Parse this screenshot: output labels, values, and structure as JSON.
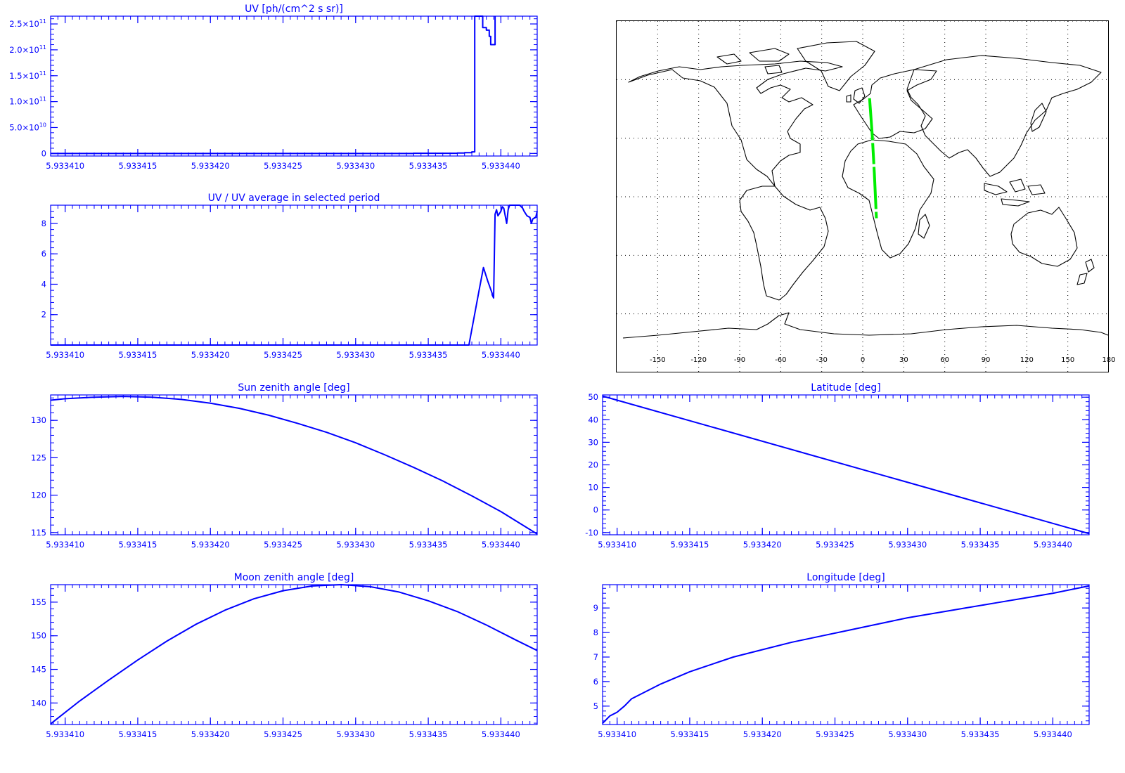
{
  "colors": {
    "axis": "#0000ff",
    "line": "#0000ff",
    "track": "#00ee00",
    "map": "#000000"
  },
  "chart_data": [
    {
      "id": "uv",
      "type": "line",
      "title": "UV [ph/(cm^2 s sr)]",
      "xlim": [
        5.933409,
        5.9334425
      ],
      "ylim": [
        -5000000000,
        265000000000
      ],
      "xticks": [
        5.93341,
        5.933415,
        5.93342,
        5.933425,
        5.93343,
        5.933435,
        5.93344
      ],
      "xtick_labels": [
        "5.933410",
        "5.933415",
        "5.933420",
        "5.933425",
        "5.933430",
        "5.933435",
        "5.933440"
      ],
      "yticks": [
        0,
        50000000000,
        100000000000,
        150000000000,
        200000000000,
        250000000000
      ],
      "ytick_labels": [
        {
          "mant": "0",
          "exp": ""
        },
        {
          "mant": "5.0×10",
          "exp": "10"
        },
        {
          "mant": "1.0×10",
          "exp": "11"
        },
        {
          "mant": "1.5×10",
          "exp": "11"
        },
        {
          "mant": "2.0×10",
          "exp": "11"
        },
        {
          "mant": "2.5×10",
          "exp": "11"
        }
      ],
      "series": [
        {
          "step": true,
          "x": [
            5.933409,
            5.933434,
            5.933437,
            5.9334375,
            5.933438,
            5.9334382,
            5.93343875,
            5.933439,
            5.9334392,
            5.9334393,
            5.9334396,
            5.9334396
          ],
          "y": [
            0,
            200000000,
            800000000,
            1500000000,
            3000000000,
            265000000000,
            243000000000,
            238000000000,
            226000000000,
            210000000000,
            210000000000,
            265000000000
          ]
        }
      ]
    },
    {
      "id": "ratio",
      "type": "line",
      "title": "UV / UV average in selected period",
      "xlim": [
        5.933409,
        5.9334425
      ],
      "ylim": [
        0,
        9.2
      ],
      "xticks": [
        5.93341,
        5.933415,
        5.93342,
        5.933425,
        5.93343,
        5.933435,
        5.93344
      ],
      "xtick_labels": [
        "5.933410",
        "5.933415",
        "5.933420",
        "5.933425",
        "5.933430",
        "5.933435",
        "5.933440"
      ],
      "yticks": [
        2,
        4,
        6,
        8
      ],
      "ytick_labels": [
        "2",
        "4",
        "6",
        "8"
      ],
      "series": [
        {
          "x": [
            5.933409,
            5.9334378,
            5.9334385,
            5.9334388,
            5.9334391,
            5.9334394,
            5.9334394,
            5.9334395,
            5.9334396,
            5.9334397,
            5.9334398,
            5.93344,
            5.9334401,
            5.9334402,
            5.9334404,
            5.9334405,
            5.9334406,
            5.9334407,
            5.9334409,
            5.9334411,
            5.9334413,
            5.9334415,
            5.9334416,
            5.9334418,
            5.933442,
            5.9334421,
            5.9334422,
            5.9334424,
            5.9334425
          ],
          "y": [
            0,
            0,
            3.6,
            5.1,
            4.2,
            3.4,
            3.3,
            3.1,
            8.6,
            8.9,
            8.5,
            8.8,
            9.1,
            9.0,
            8.0,
            8.9,
            9.2,
            9.3,
            9.4,
            9.3,
            9.2,
            9.0,
            8.8,
            8.5,
            8.4,
            8.0,
            8.3,
            8.4,
            8.8
          ]
        }
      ]
    },
    {
      "id": "sza",
      "type": "line",
      "title": "Sun zenith angle [deg]",
      "xlim": [
        5.933409,
        5.9334425
      ],
      "ylim": [
        114.7,
        133.4
      ],
      "xticks": [
        5.93341,
        5.933415,
        5.93342,
        5.933425,
        5.93343,
        5.933435,
        5.93344
      ],
      "xtick_labels": [
        "5.933410",
        "5.933415",
        "5.933420",
        "5.933425",
        "5.933430",
        "5.933435",
        "5.933440"
      ],
      "yticks": [
        115,
        120,
        125,
        130
      ],
      "ytick_labels": [
        "115",
        "120",
        "125",
        "130"
      ],
      "series": [
        {
          "x": [
            5.933409,
            5.93341,
            5.933412,
            5.933414,
            5.933416,
            5.933418,
            5.93342,
            5.933422,
            5.933424,
            5.933426,
            5.933428,
            5.93343,
            5.933432,
            5.933434,
            5.933436,
            5.933438,
            5.93344,
            5.9334425
          ],
          "y": [
            132.7,
            132.9,
            133.1,
            133.2,
            133.1,
            132.8,
            132.3,
            131.6,
            130.7,
            129.6,
            128.4,
            127.0,
            125.4,
            123.7,
            121.9,
            119.9,
            117.8,
            114.8
          ]
        }
      ]
    },
    {
      "id": "lat",
      "type": "line",
      "title": "Latitude [deg]",
      "xlim": [
        5.933409,
        5.9334425
      ],
      "ylim": [
        -11,
        51
      ],
      "xticks": [
        5.93341,
        5.933415,
        5.93342,
        5.933425,
        5.93343,
        5.933435,
        5.93344
      ],
      "xtick_labels": [
        "5.933410",
        "5.933415",
        "5.933420",
        "5.933425",
        "5.933430",
        "5.933435",
        "5.933440"
      ],
      "yticks": [
        -10,
        0,
        10,
        20,
        30,
        40,
        50
      ],
      "ytick_labels": [
        "-10",
        "0",
        "10",
        "20",
        "30",
        "40",
        "50"
      ],
      "series": [
        {
          "x": [
            5.933409,
            5.9334425
          ],
          "y": [
            50.5,
            -10.5
          ]
        }
      ]
    },
    {
      "id": "mza",
      "type": "line",
      "title": "Moon zenith angle [deg]",
      "xlim": [
        5.933409,
        5.9334425
      ],
      "ylim": [
        136.8,
        157.6
      ],
      "xticks": [
        5.93341,
        5.933415,
        5.93342,
        5.933425,
        5.93343,
        5.933435,
        5.93344
      ],
      "xtick_labels": [
        "5.933410",
        "5.933415",
        "5.933420",
        "5.933425",
        "5.933430",
        "5.933435",
        "5.933440"
      ],
      "yticks": [
        140,
        145,
        150,
        155
      ],
      "ytick_labels": [
        "140",
        "145",
        "150",
        "155"
      ],
      "series": [
        {
          "x": [
            5.933409,
            5.933411,
            5.933413,
            5.933415,
            5.933417,
            5.933419,
            5.933421,
            5.933423,
            5.933425,
            5.933427,
            5.933429,
            5.933431,
            5.933433,
            5.933435,
            5.933437,
            5.933439,
            5.933441,
            5.9334425
          ],
          "y": [
            136.9,
            140.3,
            143.4,
            146.4,
            149.2,
            151.7,
            153.8,
            155.5,
            156.7,
            157.4,
            157.6,
            157.3,
            156.5,
            155.2,
            153.6,
            151.6,
            149.4,
            147.8
          ]
        }
      ]
    },
    {
      "id": "lon",
      "type": "line",
      "title": "Longitude [deg]",
      "xlim": [
        5.933409,
        5.9334425
      ],
      "ylim": [
        4.25,
        9.95
      ],
      "xticks": [
        5.93341,
        5.933415,
        5.93342,
        5.933425,
        5.93343,
        5.933435,
        5.93344
      ],
      "xtick_labels": [
        "5.933410",
        "5.933415",
        "5.933420",
        "5.933425",
        "5.933430",
        "5.933435",
        "5.933440"
      ],
      "yticks": [
        5,
        6,
        7,
        8,
        9
      ],
      "ytick_labels": [
        "5",
        "6",
        "7",
        "8",
        "9"
      ],
      "series": [
        {
          "x": [
            5.933409,
            5.9334095,
            5.93341,
            5.9334105,
            5.933411,
            5.933412,
            5.933413,
            5.933414,
            5.933415,
            5.933416,
            5.933418,
            5.93342,
            5.933422,
            5.933424,
            5.933426,
            5.933428,
            5.93343,
            5.933432,
            5.933434,
            5.933436,
            5.933438,
            5.93344,
            5.9334425
          ],
          "y": [
            4.3,
            4.6,
            4.75,
            5.0,
            5.3,
            5.6,
            5.9,
            6.15,
            6.4,
            6.6,
            7.0,
            7.3,
            7.6,
            7.85,
            8.1,
            8.35,
            8.6,
            8.8,
            9.0,
            9.2,
            9.4,
            9.6,
            9.9
          ]
        }
      ]
    }
  ],
  "map": {
    "type": "scatter",
    "xlim": [
      -180,
      180
    ],
    "ylim": [
      -90,
      90
    ],
    "xtick_labels": [
      "-150",
      "-120",
      "-90",
      "-60",
      "-30",
      "0",
      "30",
      "60",
      "90",
      "120",
      "150",
      "180"
    ],
    "track": {
      "lon": [
        5.0,
        7.0,
        8.5,
        10.0
      ],
      "lat": [
        50.5,
        31.0,
        12.0,
        -11.0
      ]
    }
  }
}
